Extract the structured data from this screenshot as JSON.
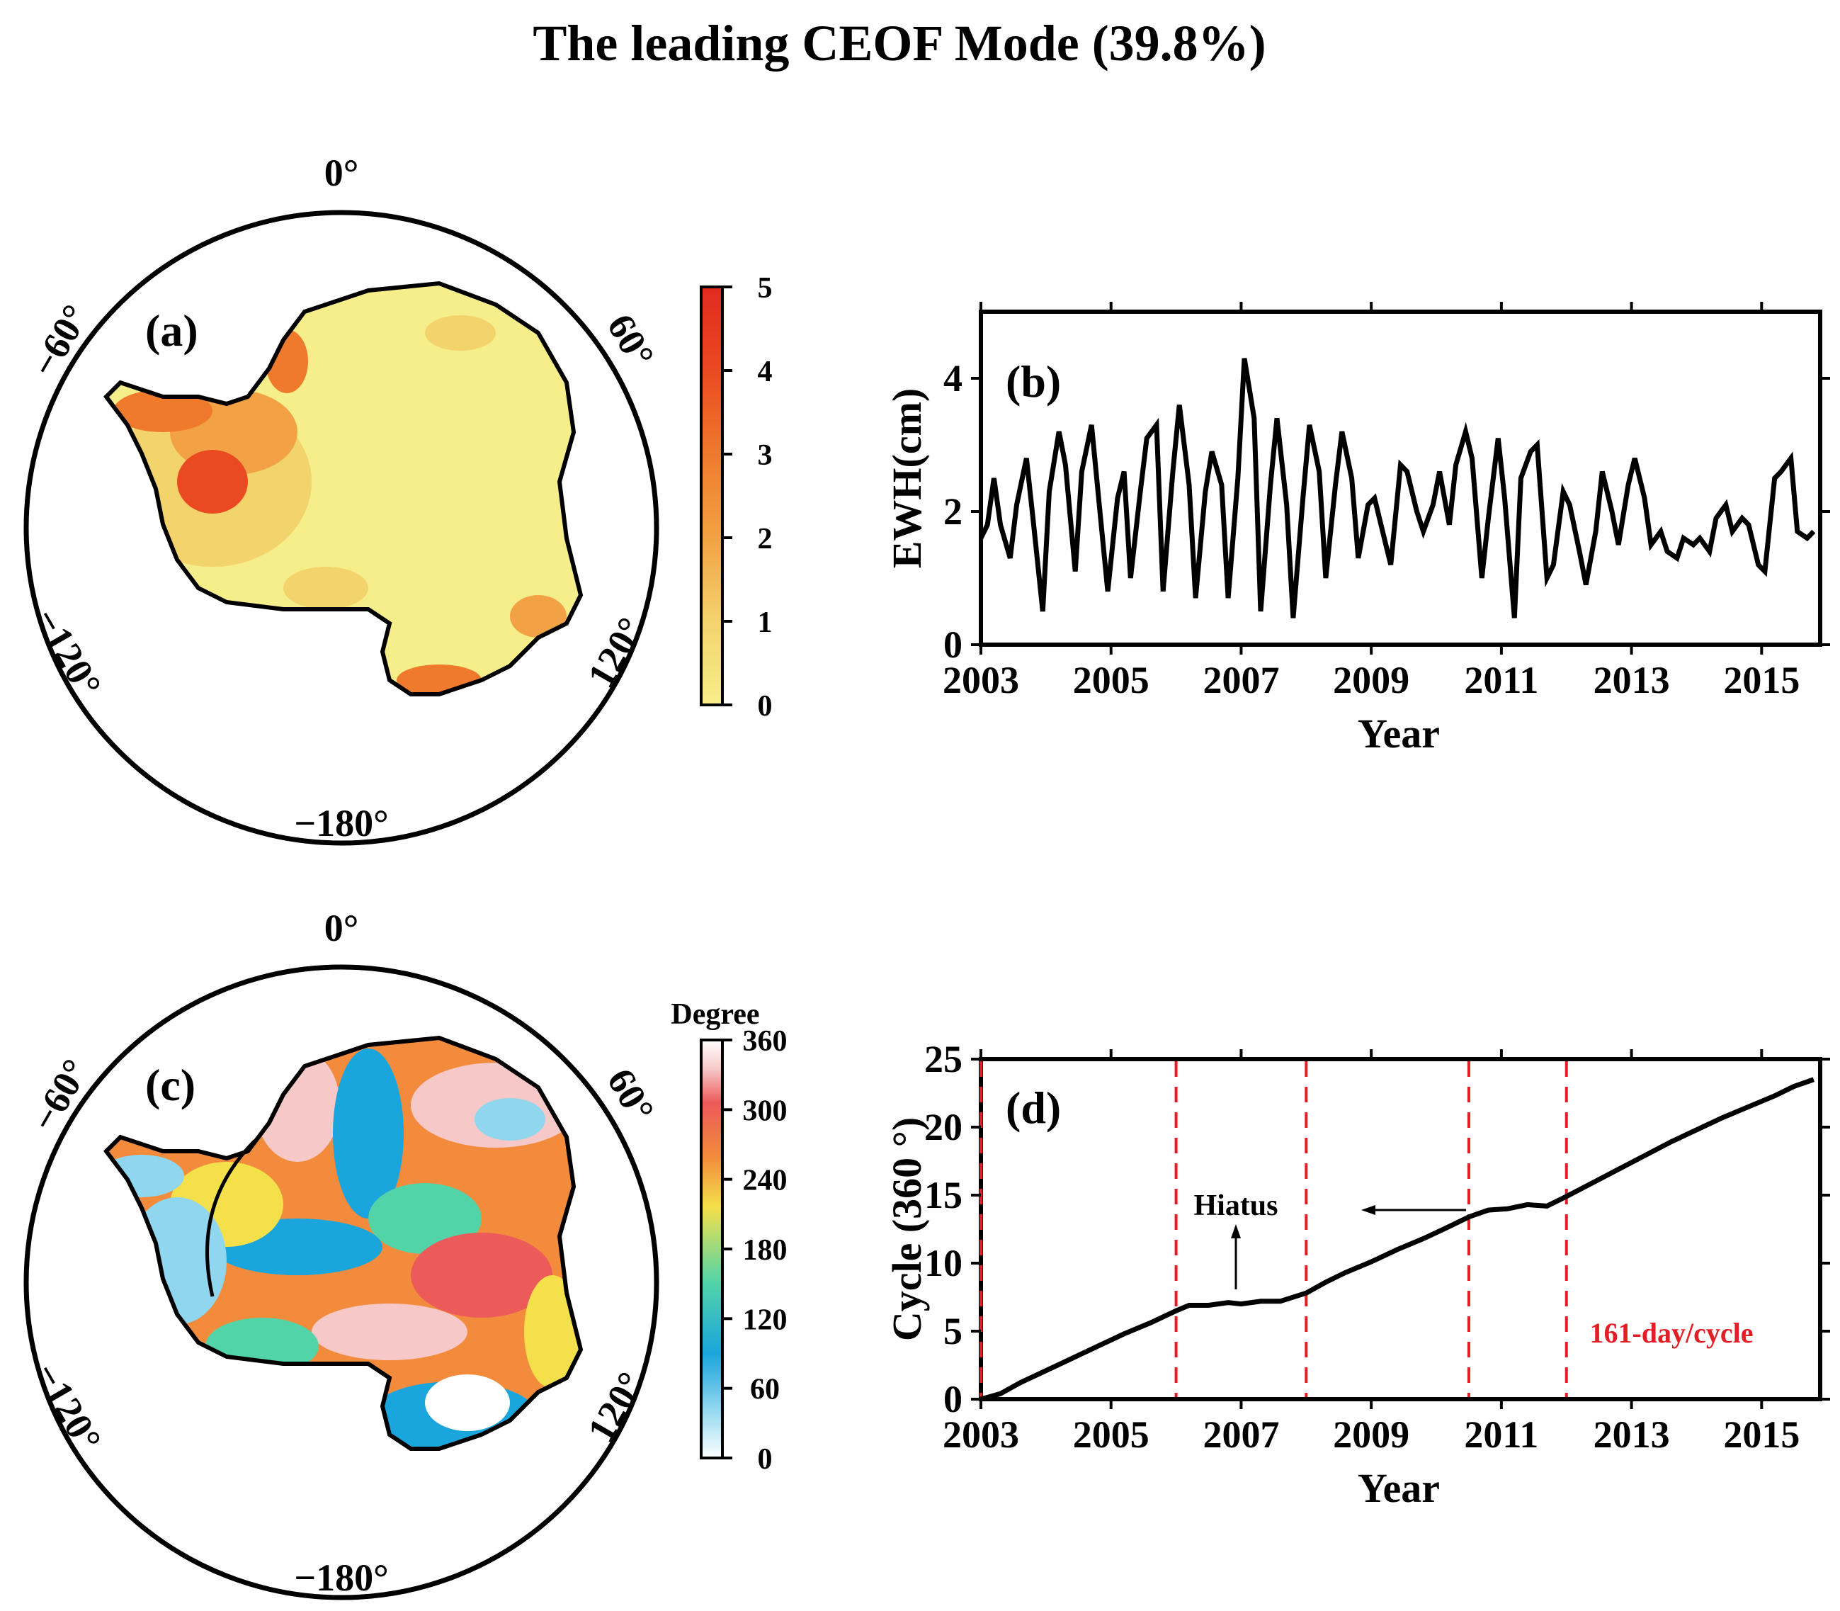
{
  "title": "The leading CEOF Mode  (39.8%)",
  "colors": {
    "amplitude_scale": [
      "#f6ee8a",
      "#f3d36c",
      "#f2a244",
      "#ef7a2c",
      "#ea4a22",
      "#e12a1f"
    ],
    "phase_scale": [
      "#ffffff",
      "#8fd6ee",
      "#1aa5dc",
      "#52d4a8",
      "#f4e04a",
      "#f28c3c",
      "#ed5a5a",
      "#f7c8c8",
      "#ffffff"
    ],
    "accent_red": "#e21f26",
    "line": "#000000"
  },
  "map_labels": {
    "top": "0°",
    "left": "−60°",
    "right": "60°",
    "lower_left": "−120°",
    "lower_right": "120°",
    "bottom": "−180°"
  },
  "chart_data": [
    {
      "panel": "(a)",
      "type": "heatmap",
      "title": "(a)",
      "description_field": "CEOF spatial amplitude over Antarctica",
      "colorbar": {
        "ticks": [
          "0",
          "1",
          "2",
          "3",
          "4",
          "5"
        ],
        "range": [
          0,
          5
        ]
      }
    },
    {
      "panel": "(b)",
      "type": "line",
      "title": "(b)",
      "xlabel": "Year",
      "ylabel": "EWH(cm)",
      "xlim": [
        2003,
        2015.9
      ],
      "ylim": [
        0,
        5
      ],
      "xticks": [
        "2003",
        "2005",
        "2007",
        "2009",
        "2011",
        "2013",
        "2015"
      ],
      "yticks": [
        "0",
        "2",
        "4"
      ],
      "x": [
        2003.0,
        2003.1,
        2003.2,
        2003.3,
        2003.45,
        2003.55,
        2003.7,
        2003.8,
        2003.95,
        2004.05,
        2004.2,
        2004.3,
        2004.45,
        2004.55,
        2004.7,
        2004.8,
        2004.95,
        2005.1,
        2005.2,
        2005.3,
        2005.45,
        2005.55,
        2005.7,
        2005.8,
        2005.95,
        2006.05,
        2006.2,
        2006.3,
        2006.45,
        2006.55,
        2006.7,
        2006.8,
        2006.95,
        2007.05,
        2007.2,
        2007.3,
        2007.45,
        2007.55,
        2007.7,
        2007.8,
        2007.95,
        2008.05,
        2008.2,
        2008.3,
        2008.45,
        2008.55,
        2008.7,
        2008.8,
        2008.95,
        2009.05,
        2009.2,
        2009.3,
        2009.45,
        2009.55,
        2009.7,
        2009.8,
        2009.95,
        2010.05,
        2010.2,
        2010.3,
        2010.45,
        2010.55,
        2010.7,
        2010.8,
        2010.95,
        2011.05,
        2011.2,
        2011.3,
        2011.45,
        2011.55,
        2011.7,
        2011.8,
        2011.95,
        2012.05,
        2012.2,
        2012.3,
        2012.45,
        2012.55,
        2012.7,
        2012.8,
        2012.95,
        2013.05,
        2013.2,
        2013.3,
        2013.45,
        2013.55,
        2013.7,
        2013.8,
        2013.95,
        2014.05,
        2014.2,
        2014.3,
        2014.45,
        2014.55,
        2014.7,
        2014.8,
        2014.95,
        2015.05,
        2015.2,
        2015.3,
        2015.45,
        2015.55,
        2015.7,
        2015.8
      ],
      "values": [
        1.6,
        1.8,
        2.5,
        1.8,
        1.3,
        2.1,
        2.8,
        1.9,
        0.5,
        2.3,
        3.2,
        2.7,
        1.1,
        2.6,
        3.3,
        2.3,
        0.8,
        2.2,
        2.6,
        1.0,
        2.3,
        3.1,
        3.3,
        0.8,
        2.6,
        3.6,
        2.4,
        0.7,
        2.3,
        2.9,
        2.4,
        0.7,
        2.5,
        4.3,
        3.4,
        0.5,
        2.4,
        3.4,
        2.1,
        0.4,
        2.2,
        3.3,
        2.6,
        1.0,
        2.4,
        3.2,
        2.5,
        1.3,
        2.1,
        2.2,
        1.6,
        1.2,
        2.7,
        2.6,
        2.0,
        1.7,
        2.1,
        2.6,
        1.8,
        2.7,
        3.2,
        2.8,
        1.0,
        1.9,
        3.1,
        2.2,
        0.4,
        2.5,
        2.9,
        3.0,
        1.0,
        1.2,
        2.3,
        2.1,
        1.4,
        0.9,
        1.7,
        2.6,
        2.0,
        1.5,
        2.4,
        2.8,
        2.2,
        1.5,
        1.7,
        1.4,
        1.3,
        1.6,
        1.5,
        1.6,
        1.4,
        1.9,
        2.1,
        1.7,
        1.9,
        1.8,
        1.2,
        1.1,
        2.5,
        2.6,
        2.8,
        1.7,
        1.6,
        1.7
      ]
    },
    {
      "panel": "(c)",
      "type": "heatmap",
      "title": "(c)",
      "description_field": "CEOF spatial phase over Antarctica",
      "colorbar": {
        "label": "Degree",
        "ticks": [
          "0",
          "60",
          "120",
          "180",
          "240",
          "300",
          "360"
        ],
        "range": [
          0,
          360
        ]
      }
    },
    {
      "panel": "(d)",
      "type": "line",
      "title": "(d)",
      "xlabel": "Year",
      "ylabel": "Cycle (360 °)",
      "xlim": [
        2003,
        2015.9
      ],
      "ylim": [
        0,
        25
      ],
      "xticks": [
        "2003",
        "2005",
        "2007",
        "2009",
        "2011",
        "2013",
        "2015"
      ],
      "yticks": [
        "0",
        "5",
        "10",
        "15",
        "20",
        "25"
      ],
      "x": [
        2003.0,
        2003.3,
        2003.6,
        2004.0,
        2004.4,
        2004.8,
        2005.2,
        2005.6,
        2006.0,
        2006.2,
        2006.5,
        2006.8,
        2007.0,
        2007.3,
        2007.6,
        2008.0,
        2008.3,
        2008.6,
        2009.0,
        2009.4,
        2009.8,
        2010.2,
        2010.5,
        2010.8,
        2011.1,
        2011.4,
        2011.7,
        2012.0,
        2012.4,
        2012.8,
        2013.2,
        2013.6,
        2014.0,
        2014.4,
        2014.8,
        2015.2,
        2015.5,
        2015.8
      ],
      "values": [
        0.0,
        0.4,
        1.2,
        2.1,
        3.0,
        3.9,
        4.8,
        5.6,
        6.5,
        6.9,
        6.9,
        7.1,
        7.0,
        7.2,
        7.2,
        7.8,
        8.6,
        9.3,
        10.1,
        11.0,
        11.8,
        12.7,
        13.4,
        13.9,
        14.0,
        14.3,
        14.2,
        14.9,
        15.9,
        16.9,
        17.9,
        18.9,
        19.8,
        20.7,
        21.5,
        22.3,
        23.0,
        23.5
      ],
      "vlines": [
        2006.0,
        2008.0,
        2010.5,
        2012.0
      ],
      "annotations": {
        "hiatus": "Hiatus",
        "cycle": "161-day/cycle"
      }
    }
  ]
}
